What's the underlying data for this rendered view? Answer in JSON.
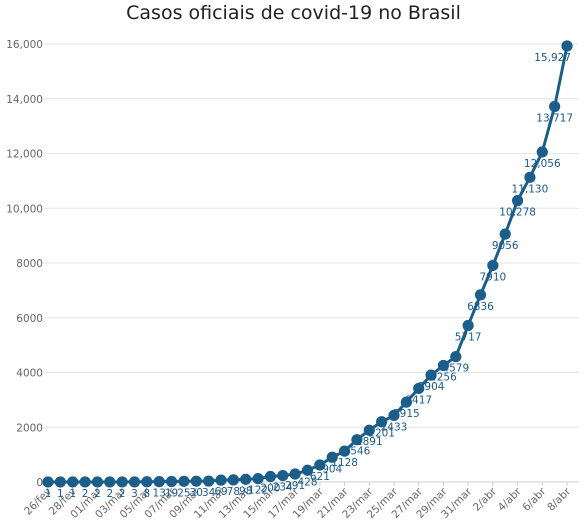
{
  "chart_data": {
    "type": "line",
    "title": "Casos oficiais de covid-19 no Brasil",
    "xlabel": "",
    "ylabel": "",
    "ylim": [
      0,
      16000
    ],
    "y_ticks": [
      "0",
      "2000",
      "4000",
      "6000",
      "8000",
      "10,000",
      "12,000",
      "14,000",
      "16,000"
    ],
    "y_tick_values": [
      0,
      2000,
      4000,
      6000,
      8000,
      10000,
      12000,
      14000,
      16000
    ],
    "grid": true,
    "legend": "none",
    "x": [
      "26/fev",
      "27/fev",
      "28/fev",
      "29/fev",
      "01/mar",
      "02/mar",
      "03/mar",
      "04/mar",
      "05/mar",
      "06/mar",
      "07/mar",
      "08/mar",
      "09/mar",
      "10/mar",
      "11/mar",
      "12/mar",
      "13/mar",
      "14/mar",
      "15/mar",
      "16/mar",
      "17/mar",
      "18/mar",
      "19/mar",
      "20/mar",
      "21/mar",
      "22/mar",
      "23/mar",
      "24/mar",
      "25/mar",
      "26/mar",
      "27/mar",
      "28/mar",
      "29/mar",
      "30/mar",
      "31/mar",
      "1/abr",
      "2/abr",
      "3/abr",
      "4/abr",
      "5/abr",
      "6/abr",
      "7/abr",
      "8/abr"
    ],
    "x_tick_labels": [
      "26/fev",
      "28/fev",
      "01/mar",
      "03/mar",
      "05/mar",
      "07/mar",
      "09/mar",
      "11/mar",
      "13/mar",
      "15/mar",
      "17/mar",
      "19/mar",
      "21/mar",
      "23/mar",
      "25/mar",
      "27/mar",
      "29/mar",
      "31/mar",
      "2/abr",
      "4/abr",
      "6/abr",
      "8/abr"
    ],
    "series": [
      {
        "values": [
          1,
          1,
          1,
          2,
          2,
          2,
          2,
          3,
          8,
          13,
          19,
          25,
          30,
          34,
          69,
          78,
          98,
          122,
          200,
          234,
          291,
          428,
          621,
          904,
          1128,
          1546,
          1891,
          2201,
          2433,
          2915,
          3417,
          3904,
          4256,
          4579,
          5717,
          6836,
          7910,
          9056,
          10278,
          11130,
          12056,
          13717,
          15927
        ],
        "labels": [
          "1",
          "1",
          "1",
          "2",
          "2",
          "2",
          "2",
          "3",
          "8",
          "13",
          "19",
          "25",
          "30",
          "34",
          "69",
          "78",
          "98",
          "122",
          "200",
          "234",
          "291",
          "428",
          "621",
          "904",
          "1128",
          "1546",
          "1891",
          "2201",
          "2433",
          "2915",
          "3417",
          "3904",
          "4256",
          "4579",
          "5717",
          "6836",
          "7910",
          "9056",
          "10,278",
          "11,130",
          "12,056",
          "13,717",
          "15,927"
        ]
      }
    ],
    "colors": {
      "line": "#1b5e8a",
      "grid": "#e6e6e6",
      "axis": "#cccccc"
    }
  }
}
